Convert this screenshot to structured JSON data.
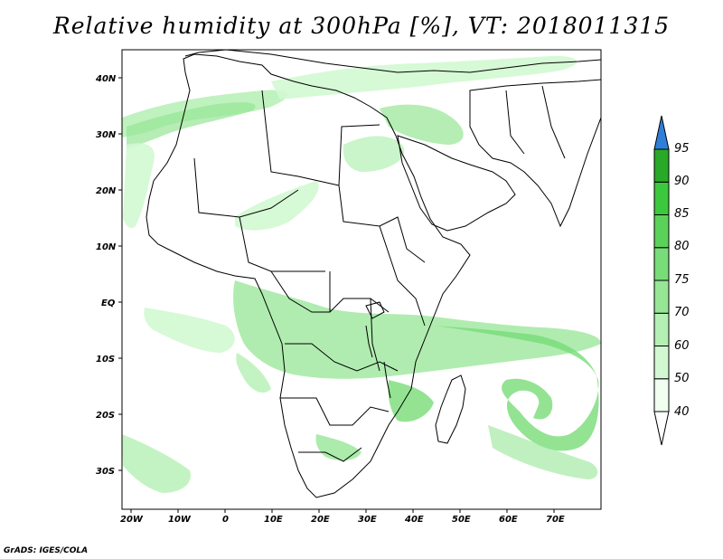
{
  "title": "Relative humidity at 300hPa [%], VT: 2018011315",
  "credit": "GrADS: IGES/COLA",
  "latitude_labels": [
    "40N",
    "30N",
    "20N",
    "10N",
    "EQ",
    "10S",
    "20S",
    "30S"
  ],
  "longitude_labels": [
    "20W",
    "10W",
    "0",
    "10E",
    "20E",
    "30E",
    "40E",
    "50E",
    "60E",
    "70E"
  ],
  "colorbar": {
    "levels": [
      "40",
      "50",
      "60",
      "70",
      "75",
      "80",
      "85",
      "90",
      "95"
    ],
    "colors": [
      "#f0fff0",
      "#d2f8d2",
      "#b4f0b4",
      "#96e696",
      "#78dc78",
      "#5ad25a",
      "#3cc83c",
      "#28aa28",
      "#2f7fd9"
    ],
    "extend": "both"
  },
  "colors": {
    "coastline": "#000000",
    "background": "#ffffff"
  }
}
